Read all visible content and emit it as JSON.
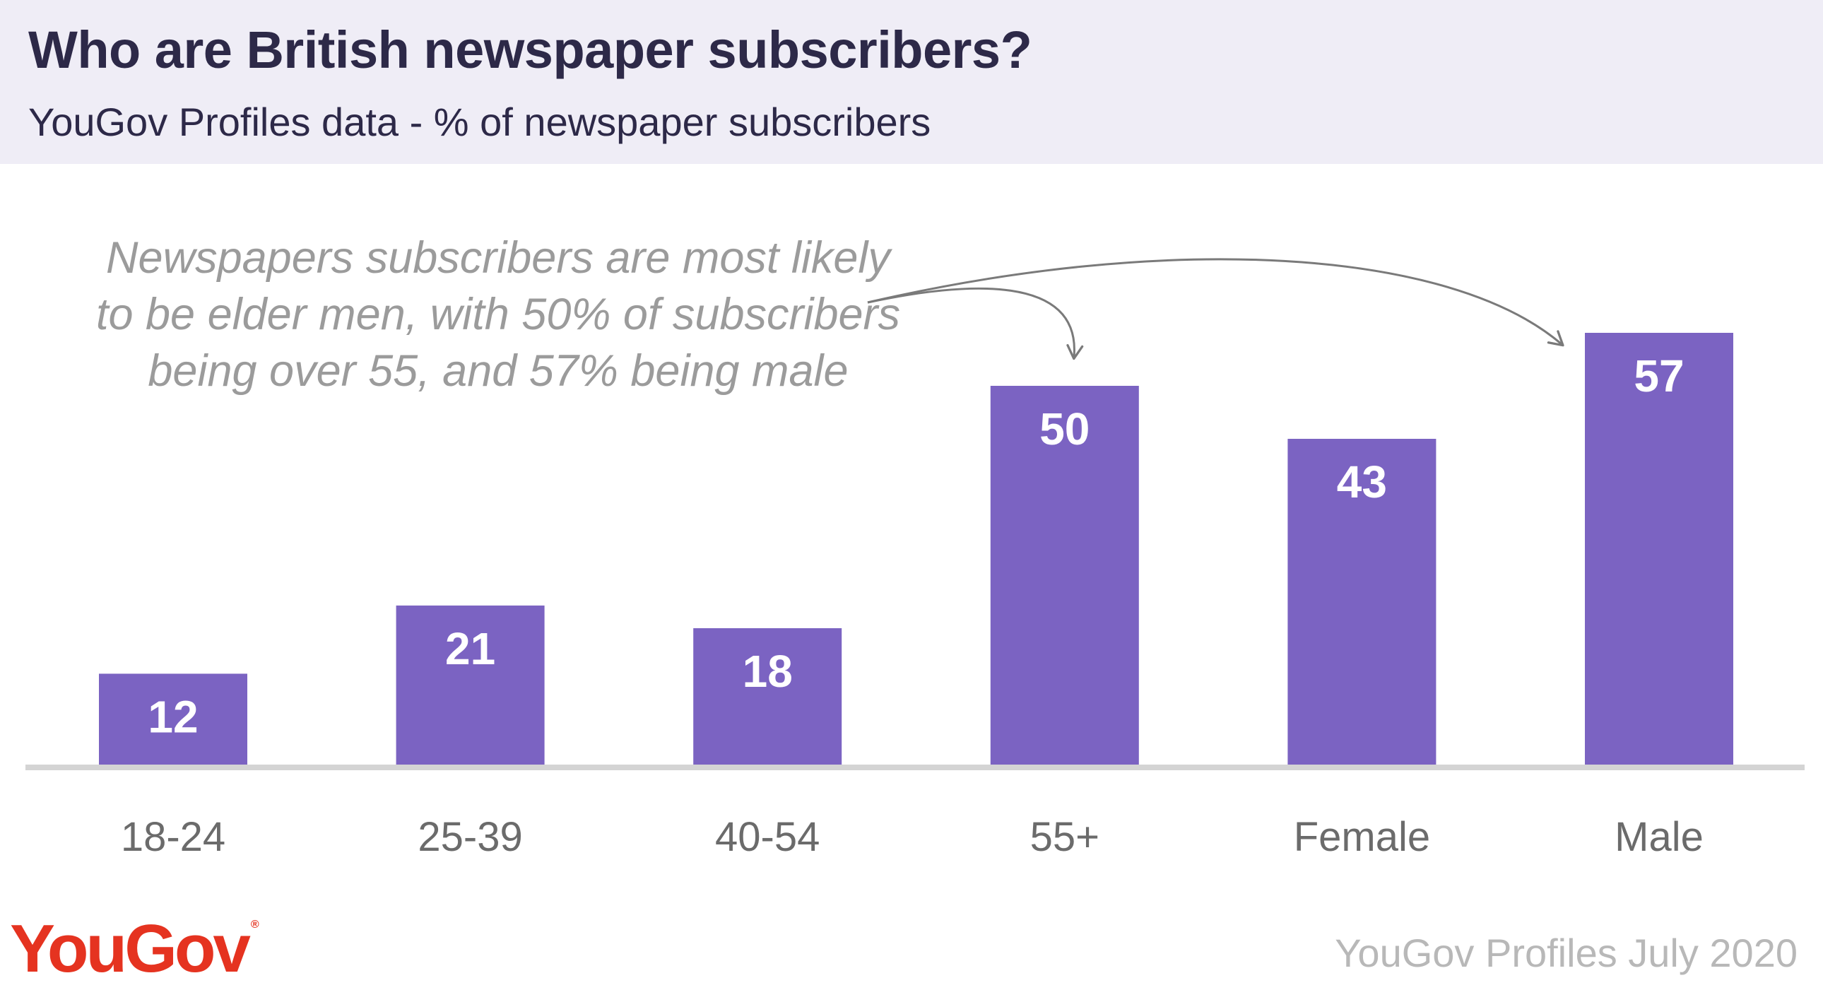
{
  "header": {
    "title": "Who are British newspaper subscribers?",
    "subtitle": "YouGov Profiles data - % of newspaper subscribers"
  },
  "annotation": "Newspapers subscribers are most likely to be elder men, with 50% of subscribers being over 55, and 57% being male",
  "footer": {
    "logo_text": "YouGov",
    "source": "YouGov Profiles July 2020"
  },
  "colors": {
    "bar": "#7b63c2",
    "header_bg": "#efedf6",
    "title": "#2d2948",
    "logo": "#e53320"
  },
  "chart_data": {
    "type": "bar",
    "title": "Who are British newspaper subscribers?",
    "subtitle": "YouGov Profiles data - % of newspaper subscribers",
    "categories": [
      "18-24",
      "25-39",
      "40-54",
      "55+",
      "Female",
      "Male"
    ],
    "values": [
      12,
      21,
      18,
      50,
      43,
      57
    ],
    "ylim": [
      0,
      60
    ],
    "xlabel": "",
    "ylabel": "",
    "grid": false,
    "legend": "none",
    "data_labels": true
  }
}
